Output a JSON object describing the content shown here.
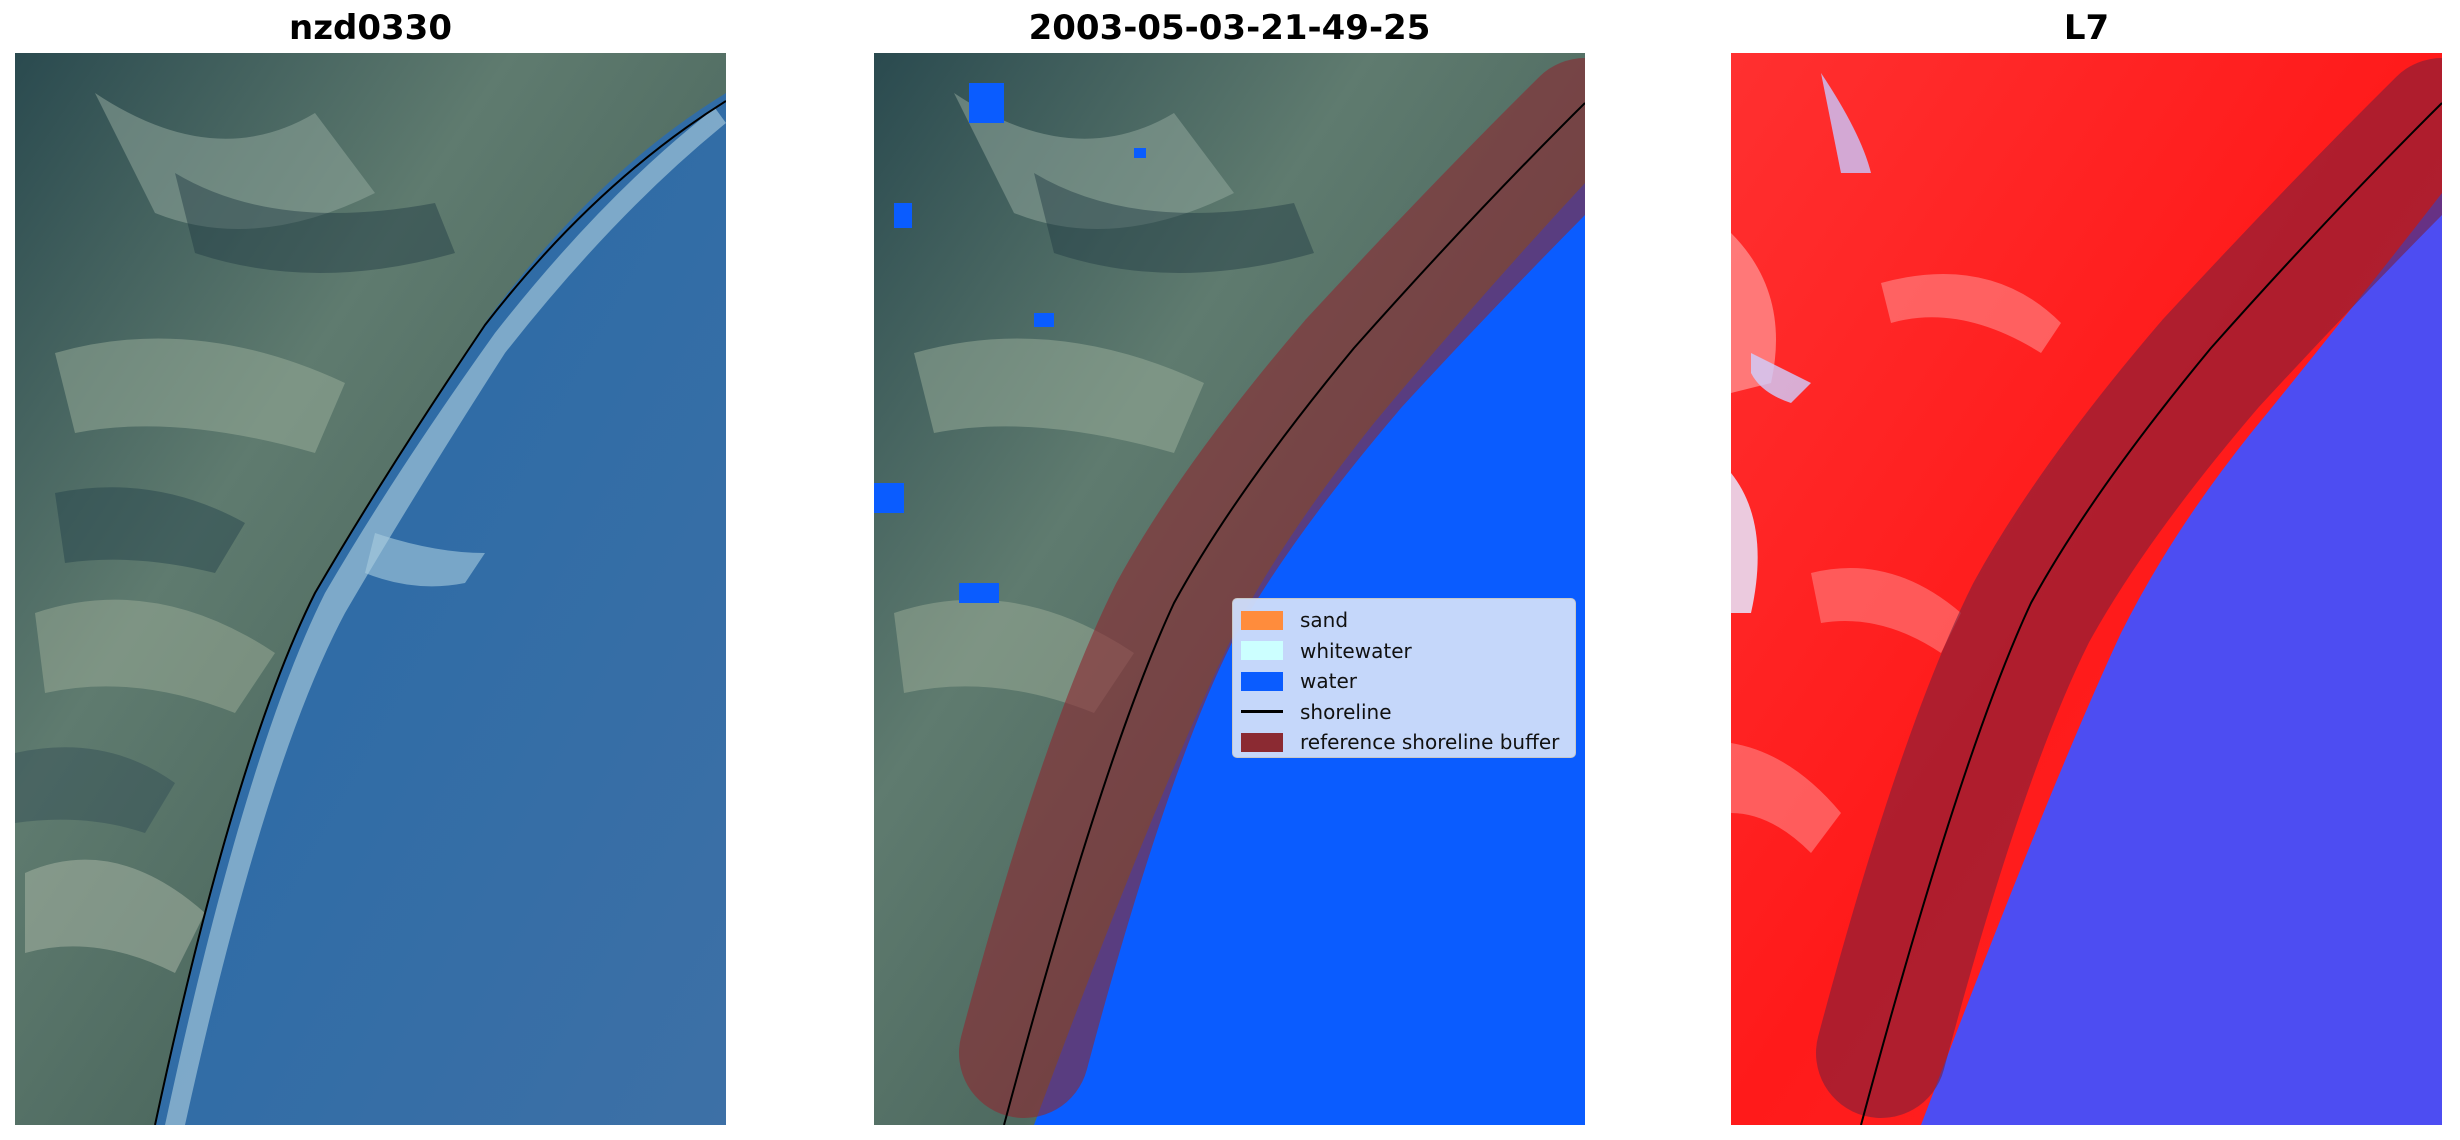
{
  "panels": [
    {
      "title": "nzd0330"
    },
    {
      "title": "2003-05-03-21-49-25"
    },
    {
      "title": "L7"
    }
  ],
  "legend": {
    "items": [
      {
        "label": "sand",
        "color": "#ff8c3c",
        "kind": "patch"
      },
      {
        "label": "whitewater",
        "color": "#ccffff",
        "kind": "patch"
      },
      {
        "label": "water",
        "color": "#0a5cff",
        "kind": "patch"
      },
      {
        "label": "shoreline",
        "color": "#000000",
        "kind": "line"
      },
      {
        "label": "reference shoreline buffer",
        "color": "#8b2a32",
        "kind": "patch"
      }
    ]
  },
  "colors": {
    "land_dark": "#2e4f56",
    "land_mid": "#6a8474",
    "ocean_rgb": "#3f78a8",
    "ocean_classified": "#0a5cff",
    "buffer": "#8b2a32",
    "index_land": "#ff1a1a",
    "index_water": "#4d4df2"
  }
}
